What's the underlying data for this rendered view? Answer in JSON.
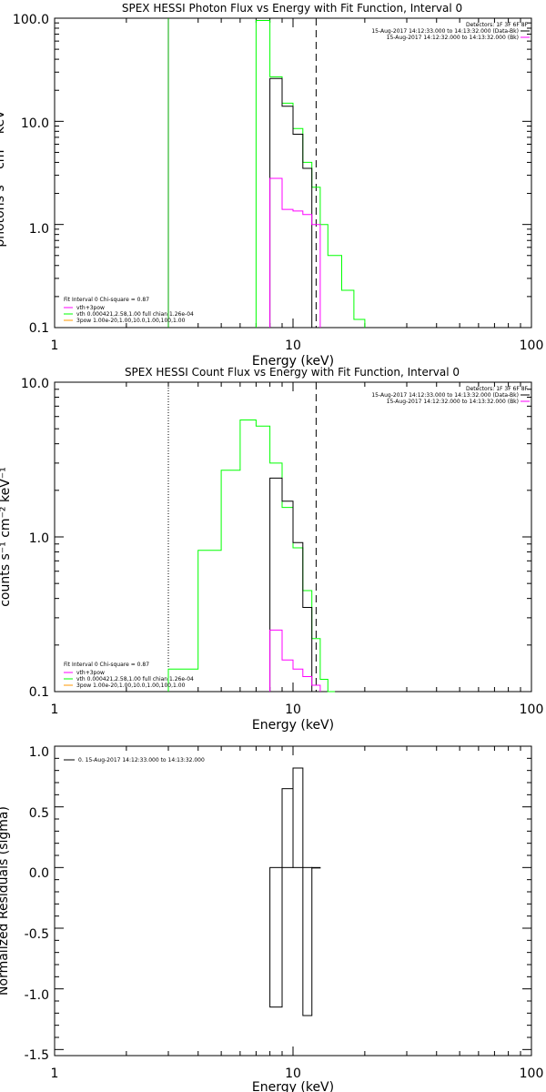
{
  "colors": {
    "black": "#000000",
    "green": "#00ff00",
    "magenta": "#ff00ff",
    "vline_green": "#00aa00",
    "orange": "#ff9900"
  },
  "chart_data": [
    {
      "type": "line",
      "id": "photon",
      "title": "SPEX HESSI Photon Flux vs Energy with Fit Function, Interval 0",
      "xlabel": "Energy (keV)",
      "ylabel": "photons s⁻¹ cm⁻² keV⁻¹",
      "xscale": "log",
      "yscale": "log",
      "xlim": [
        1,
        100
      ],
      "ylim": [
        0.1,
        100
      ],
      "xticks": [
        "1",
        "10",
        "100"
      ],
      "yticks": [
        "0.1",
        "1.0",
        "10.0",
        "100.0"
      ],
      "header_right": [
        "Detectors: 1F 3F 6F 8F",
        "15-Aug-2017 14:12:33.000 to 14:13:32.000 (Data-Bk)",
        "15-Aug-2017 14:12:32.000 to 14:13:32.000 (Bk)"
      ],
      "legend_left": [
        "Fit Interval  0    Chi-square = 0.87",
        "vth+3pow",
        "vth 0.000421,2.58,1.00   full chian 1.26e-04",
        "3pow 1.00e-20,1.00,10.0,1.00,100,1.00"
      ],
      "vlines": [
        {
          "x": 3.0,
          "style": "solid",
          "color": "#00aa00"
        },
        {
          "x": 12.5,
          "style": "dashed",
          "color": "#000000"
        }
      ],
      "series": [
        {
          "color": "#00ff00",
          "kind": "step",
          "edges": [
            7.0,
            8.0,
            9.0,
            10.0,
            11.0,
            12.0,
            13.0,
            14.0,
            16.0,
            18.0,
            20.0
          ],
          "values": [
            95,
            27,
            15,
            8.5,
            4.0,
            2.3,
            1.0,
            0.5,
            0.23,
            0.12
          ]
        },
        {
          "color": "#000000",
          "kind": "step",
          "edges": [
            8.0,
            9.0,
            10.0,
            11.0,
            12.0
          ],
          "values": [
            26,
            14,
            7.5,
            3.5
          ]
        },
        {
          "color": "#ff00ff",
          "kind": "step",
          "edges": [
            8.0,
            9.0,
            10.0,
            11.0,
            12.0,
            13.0
          ],
          "values": [
            2.8,
            1.4,
            1.35,
            1.25,
            1.0
          ]
        }
      ]
    },
    {
      "type": "line",
      "id": "count",
      "title": "SPEX HESSI Count Flux vs Energy with Fit Function, Interval 0",
      "xlabel": "Energy (keV)",
      "ylabel": "counts s⁻¹ cm⁻² keV⁻¹",
      "xscale": "log",
      "yscale": "log",
      "xlim": [
        1,
        100
      ],
      "ylim": [
        0.1,
        10
      ],
      "xticks": [
        "1",
        "10",
        "100"
      ],
      "yticks": [
        "0.1",
        "1.0",
        "10.0"
      ],
      "header_right": [
        "Detectors: 1F 3F 6F 8F",
        "15-Aug-2017 14:12:33.000 to 14:13:32.000 (Data-Bk)",
        "15-Aug-2017 14:12:32.000 to 14:13:32.000 (Bk)"
      ],
      "legend_left": [
        "Fit Interval  0    Chi-square = 0.87",
        "vth+3pow",
        "vth 0.000421,2.58,1.00   full chian 1.26e-04",
        "3pow 1.00e-20,1.00,10.0,1.00,100,1.00"
      ],
      "vlines": [
        {
          "x": 3.0,
          "style": "dotted",
          "color": "#000000"
        },
        {
          "x": 12.5,
          "style": "dashed",
          "color": "#000000"
        }
      ],
      "series": [
        {
          "color": "#00ff00",
          "kind": "step",
          "edges": [
            3.0,
            4.0,
            5.0,
            6.0,
            7.0,
            8.0,
            9.0,
            10.0,
            11.0,
            12.0,
            13.0,
            14.0,
            15.0
          ],
          "values": [
            0.14,
            0.82,
            2.7,
            5.7,
            5.2,
            3.0,
            1.55,
            0.85,
            0.45,
            0.22,
            0.12,
            0.1
          ]
        },
        {
          "color": "#000000",
          "kind": "step",
          "edges": [
            8.0,
            9.0,
            10.0,
            11.0,
            12.0
          ],
          "values": [
            2.4,
            1.7,
            0.92,
            0.35
          ]
        },
        {
          "color": "#ff00ff",
          "kind": "step",
          "edges": [
            8.0,
            9.0,
            10.0,
            11.0,
            12.0,
            13.0
          ],
          "values": [
            0.25,
            0.16,
            0.14,
            0.125,
            0.11
          ]
        }
      ]
    },
    {
      "type": "line",
      "id": "resid",
      "title": "",
      "xlabel": "Energy (keV)",
      "ylabel": "Normalized Residuals (sigma)",
      "xscale": "log",
      "yscale": "linear",
      "xlim": [
        1,
        100
      ],
      "ylim": [
        -1.55,
        1.0
      ],
      "xticks": [
        "1",
        "10",
        "100"
      ],
      "yticks": [
        "-1.5",
        "-1.0",
        "-0.5",
        "0.0",
        "0.5",
        "1.0"
      ],
      "legend_left": [
        "0. 15-Aug-2017 14:12:33.000 to 14:13:32.000"
      ],
      "series": [
        {
          "color": "#000000",
          "kind": "bars",
          "edges": [
            8.0,
            9.0,
            10.0,
            11.0,
            12.0,
            13.0
          ],
          "values": [
            -1.15,
            0.65,
            0.82,
            -1.22,
            0.0
          ]
        }
      ]
    }
  ]
}
